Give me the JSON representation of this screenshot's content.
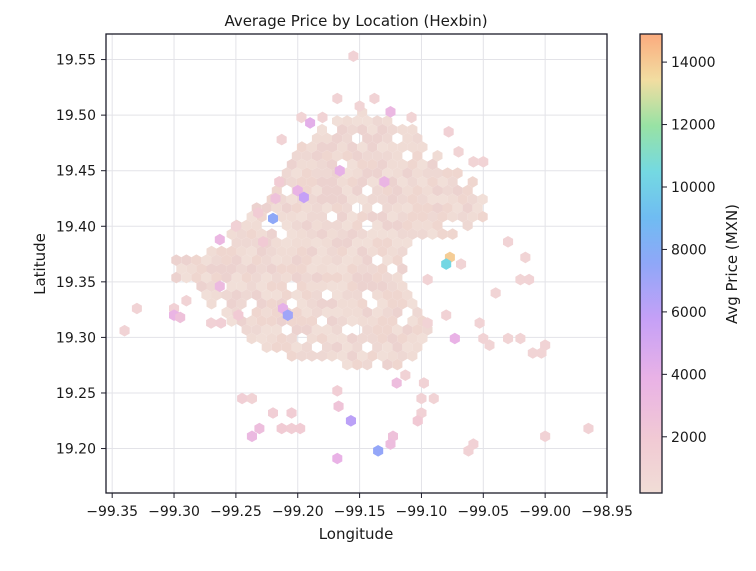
{
  "chart_data": {
    "type": "hexbin",
    "title": "Average Price by Location (Hexbin)",
    "xlabel": "Longitude",
    "ylabel": "Latitude",
    "colorbar_label": "Avg Price (MXN)",
    "xlim": [
      -99.355,
      -98.95
    ],
    "ylim": [
      19.16,
      19.573
    ],
    "xticks": [
      -99.35,
      -99.3,
      -99.25,
      -99.2,
      -99.15,
      -99.1,
      -99.05,
      -99.0,
      -98.95
    ],
    "xtick_labels": [
      "−99.35",
      "−99.30",
      "−99.25",
      "−99.20",
      "−99.15",
      "−99.10",
      "−99.05",
      "−99.00",
      "−98.95"
    ],
    "yticks": [
      19.2,
      19.25,
      19.3,
      19.35,
      19.4,
      19.45,
      19.5,
      19.55
    ],
    "ytick_labels": [
      "19.20",
      "19.25",
      "19.30",
      "19.35",
      "19.40",
      "19.45",
      "19.50",
      "19.55"
    ],
    "colorbar_range": [
      200,
      14900
    ],
    "colorbar_ticks": [
      2000,
      4000,
      6000,
      8000,
      10000,
      12000,
      14000
    ],
    "colorbar_tick_labels": [
      "2000",
      "4000",
      "6000",
      "8000",
      "10000",
      "12000",
      "14000"
    ],
    "colormap_stops": [
      [
        0.0,
        "#f1ddd6"
      ],
      [
        0.12,
        "#f1c9d4"
      ],
      [
        0.25,
        "#e9b2e6"
      ],
      [
        0.38,
        "#c5a0f7"
      ],
      [
        0.5,
        "#8fa7f8"
      ],
      [
        0.6,
        "#6fbcf2"
      ],
      [
        0.7,
        "#74d9e2"
      ],
      [
        0.8,
        "#98e2a4"
      ],
      [
        0.9,
        "#f2dda1"
      ],
      [
        1.0,
        "#fbab7e"
      ]
    ],
    "grid": true,
    "points": [
      [
        -99.155,
        19.553,
        1200
      ],
      [
        -99.168,
        19.515,
        1100
      ],
      [
        -99.138,
        19.515,
        1100
      ],
      [
        -99.15,
        19.508,
        1000
      ],
      [
        -99.125,
        19.503,
        3400
      ],
      [
        -99.197,
        19.498,
        1000
      ],
      [
        -99.18,
        19.498,
        1100
      ],
      [
        -99.108,
        19.498,
        1000
      ],
      [
        -99.19,
        19.493,
        4200
      ],
      [
        -99.078,
        19.485,
        1300
      ],
      [
        -99.213,
        19.478,
        1100
      ],
      [
        -99.07,
        19.467,
        1000
      ],
      [
        -99.058,
        19.458,
        1000
      ],
      [
        -99.05,
        19.458,
        1100
      ],
      [
        -99.166,
        19.45,
        4000
      ],
      [
        -99.215,
        19.44,
        1700
      ],
      [
        -99.2,
        19.432,
        3800
      ],
      [
        -99.195,
        19.426,
        5800
      ],
      [
        -99.13,
        19.44,
        3600
      ],
      [
        -99.218,
        19.425,
        2600
      ],
      [
        -99.232,
        19.412,
        1700
      ],
      [
        -99.22,
        19.407,
        7600
      ],
      [
        -99.25,
        19.4,
        1300
      ],
      [
        -99.263,
        19.388,
        3500
      ],
      [
        -99.228,
        19.386,
        1900
      ],
      [
        -99.03,
        19.386,
        1100
      ],
      [
        -99.016,
        19.372,
        1000
      ],
      [
        -99.077,
        19.372,
        13900
      ],
      [
        -99.08,
        19.366,
        10400
      ],
      [
        -99.068,
        19.366,
        1000
      ],
      [
        -99.095,
        19.352,
        1100
      ],
      [
        -99.04,
        19.34,
        1000
      ],
      [
        -99.02,
        19.352,
        1000
      ],
      [
        -99.013,
        19.352,
        1100
      ],
      [
        -99.263,
        19.346,
        3200
      ],
      [
        -99.33,
        19.326,
        1100
      ],
      [
        -99.3,
        19.326,
        1300
      ],
      [
        -99.29,
        19.333,
        1100
      ],
      [
        -99.212,
        19.326,
        4100
      ],
      [
        -99.208,
        19.32,
        7000
      ],
      [
        -99.3,
        19.32,
        3700
      ],
      [
        -99.295,
        19.318,
        2600
      ],
      [
        -99.27,
        19.313,
        1300
      ],
      [
        -99.262,
        19.313,
        1400
      ],
      [
        -99.248,
        19.32,
        1900
      ],
      [
        -99.095,
        19.313,
        1100
      ],
      [
        -99.08,
        19.32,
        1200
      ],
      [
        -99.053,
        19.313,
        1100
      ],
      [
        -99.34,
        19.306,
        1100
      ],
      [
        -99.073,
        19.299,
        3900
      ],
      [
        -99.05,
        19.299,
        1100
      ],
      [
        -99.045,
        19.293,
        1000
      ],
      [
        -99.03,
        19.299,
        1000
      ],
      [
        -99.02,
        19.299,
        1000
      ],
      [
        -99.0,
        19.293,
        1100
      ],
      [
        -99.01,
        19.286,
        1000
      ],
      [
        -99.003,
        19.286,
        1000
      ],
      [
        -99.113,
        19.266,
        1200
      ],
      [
        -99.12,
        19.259,
        3000
      ],
      [
        -99.168,
        19.252,
        1500
      ],
      [
        -99.098,
        19.259,
        1200
      ],
      [
        -99.245,
        19.245,
        1400
      ],
      [
        -99.237,
        19.245,
        1100
      ],
      [
        -99.1,
        19.245,
        1200
      ],
      [
        -99.09,
        19.245,
        1100
      ],
      [
        -99.167,
        19.238,
        2400
      ],
      [
        -99.22,
        19.232,
        1500
      ],
      [
        -99.205,
        19.232,
        1600
      ],
      [
        -99.1,
        19.232,
        1300
      ],
      [
        -99.157,
        19.225,
        6100
      ],
      [
        -99.103,
        19.225,
        2000
      ],
      [
        -99.213,
        19.218,
        1800
      ],
      [
        -99.205,
        19.218,
        1600
      ],
      [
        -99.198,
        19.218,
        1700
      ],
      [
        -99.231,
        19.218,
        2900
      ],
      [
        -99.237,
        19.211,
        3300
      ],
      [
        -99.123,
        19.211,
        2600
      ],
      [
        -99.0,
        19.211,
        1200
      ],
      [
        -98.965,
        19.218,
        1200
      ],
      [
        -99.058,
        19.204,
        1300
      ],
      [
        -99.125,
        19.204,
        3000
      ],
      [
        -99.062,
        19.198,
        1200
      ],
      [
        -99.135,
        19.198,
        7400
      ],
      [
        -99.168,
        19.191,
        3900
      ]
    ],
    "regions": [
      [
        [
          -99.2,
          19.468
        ],
        [
          -99.18,
          19.49
        ],
        [
          -99.155,
          19.505
        ],
        [
          -99.135,
          19.5
        ],
        [
          -99.11,
          19.49
        ],
        [
          -99.09,
          19.468
        ],
        [
          -99.075,
          19.455
        ],
        [
          -99.055,
          19.44
        ],
        [
          -99.048,
          19.418
        ],
        [
          -99.05,
          19.4
        ],
        [
          -99.075,
          19.39
        ],
        [
          -99.095,
          19.39
        ],
        [
          -99.11,
          19.382
        ],
        [
          -99.115,
          19.35
        ],
        [
          -99.1,
          19.33
        ],
        [
          -99.09,
          19.31
        ],
        [
          -99.105,
          19.285
        ],
        [
          -99.125,
          19.27
        ],
        [
          -99.15,
          19.268
        ],
        [
          -99.17,
          19.278
        ],
        [
          -99.2,
          19.28
        ],
        [
          -99.225,
          19.29
        ],
        [
          -99.25,
          19.305
        ],
        [
          -99.27,
          19.33
        ],
        [
          -99.3,
          19.352
        ],
        [
          -99.3,
          19.372
        ],
        [
          -99.265,
          19.38
        ],
        [
          -99.25,
          19.405
        ],
        [
          -99.232,
          19.418
        ],
        [
          -99.222,
          19.435
        ],
        [
          -99.21,
          19.452
        ]
      ]
    ],
    "region_price": 1100
  }
}
